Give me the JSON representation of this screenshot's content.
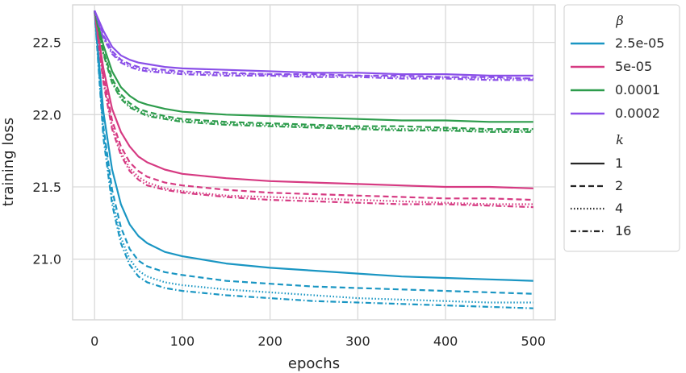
{
  "chart_data": {
    "type": "line",
    "xlabel": "epochs",
    "ylabel": "training loss",
    "xlim": [
      -25,
      525
    ],
    "ylim": [
      20.58,
      22.76
    ],
    "xticks": [
      0,
      100,
      200,
      300,
      400,
      500
    ],
    "yticks": [
      21.0,
      21.5,
      22.0,
      22.5
    ],
    "grid": true,
    "legend_position": "outside-right",
    "legend": {
      "beta_title": "β",
      "beta_entries": [
        {
          "label": "2.5e-05",
          "color": "#1a96c3"
        },
        {
          "label": "5e-05",
          "color": "#d63a82"
        },
        {
          "label": "0.0001",
          "color": "#2d9c4c"
        },
        {
          "label": "0.0002",
          "color": "#8a4fe8"
        }
      ],
      "k_title": "k",
      "k_entries": [
        {
          "label": "1",
          "dash": "solid"
        },
        {
          "label": "2",
          "dash": "dashed"
        },
        {
          "label": "4",
          "dash": "dotted"
        },
        {
          "label": "16",
          "dash": "dashdot"
        }
      ]
    },
    "x": [
      0,
      10,
      20,
      30,
      40,
      50,
      60,
      80,
      100,
      150,
      200,
      250,
      300,
      350,
      400,
      450,
      500
    ],
    "series": [
      {
        "beta": "2.5e-05",
        "k": "1",
        "values": [
          22.72,
          22.02,
          21.62,
          21.38,
          21.24,
          21.16,
          21.11,
          21.05,
          21.02,
          20.97,
          20.94,
          20.92,
          20.9,
          20.88,
          20.87,
          20.86,
          20.85
        ]
      },
      {
        "beta": "2.5e-05",
        "k": "2",
        "values": [
          22.72,
          21.92,
          21.48,
          21.22,
          21.07,
          20.99,
          20.95,
          20.91,
          20.89,
          20.85,
          20.83,
          20.81,
          20.8,
          20.79,
          20.78,
          20.77,
          20.76
        ]
      },
      {
        "beta": "2.5e-05",
        "k": "4",
        "values": [
          22.72,
          21.88,
          21.42,
          21.15,
          21.0,
          20.92,
          20.88,
          20.84,
          20.82,
          20.79,
          20.77,
          20.75,
          20.73,
          20.72,
          20.71,
          20.7,
          20.7
        ]
      },
      {
        "beta": "2.5e-05",
        "k": "16",
        "values": [
          22.72,
          21.84,
          21.38,
          21.11,
          20.96,
          20.88,
          20.84,
          20.8,
          20.78,
          20.75,
          20.73,
          20.71,
          20.7,
          20.69,
          20.68,
          20.67,
          20.66
        ]
      },
      {
        "beta": "5e-05",
        "k": "1",
        "values": [
          22.72,
          22.32,
          22.04,
          21.88,
          21.78,
          21.71,
          21.67,
          21.62,
          21.59,
          21.56,
          21.54,
          21.53,
          21.52,
          21.51,
          21.5,
          21.5,
          21.49
        ]
      },
      {
        "beta": "5e-05",
        "k": "2",
        "values": [
          22.72,
          22.27,
          21.96,
          21.78,
          21.67,
          21.61,
          21.57,
          21.53,
          21.51,
          21.48,
          21.46,
          21.45,
          21.44,
          21.43,
          21.42,
          21.42,
          21.41
        ]
      },
      {
        "beta": "5e-05",
        "k": "4",
        "values": [
          22.72,
          22.24,
          21.92,
          21.74,
          21.63,
          21.57,
          21.53,
          21.49,
          21.47,
          21.44,
          21.43,
          21.42,
          21.41,
          21.4,
          21.39,
          21.38,
          21.38
        ]
      },
      {
        "beta": "5e-05",
        "k": "16",
        "values": [
          22.72,
          22.22,
          21.9,
          21.72,
          21.61,
          21.55,
          21.51,
          21.48,
          21.46,
          21.43,
          21.41,
          21.4,
          21.39,
          21.38,
          21.38,
          21.37,
          21.36
        ]
      },
      {
        "beta": "0.0001",
        "k": "1",
        "values": [
          22.72,
          22.48,
          22.3,
          22.19,
          22.13,
          22.09,
          22.07,
          22.04,
          22.02,
          22.0,
          21.99,
          21.98,
          21.97,
          21.96,
          21.96,
          21.95,
          21.95
        ]
      },
      {
        "beta": "0.0001",
        "k": "2",
        "values": [
          22.72,
          22.44,
          22.25,
          22.14,
          22.08,
          22.04,
          22.02,
          21.99,
          21.97,
          21.95,
          21.94,
          21.93,
          21.92,
          21.92,
          21.91,
          21.9,
          21.9
        ]
      },
      {
        "beta": "0.0001",
        "k": "4",
        "values": [
          22.72,
          22.43,
          22.23,
          22.12,
          22.06,
          22.03,
          22.0,
          21.98,
          21.96,
          21.94,
          21.93,
          21.92,
          21.91,
          21.9,
          21.9,
          21.89,
          21.89
        ]
      },
      {
        "beta": "0.0001",
        "k": "16",
        "values": [
          22.72,
          22.42,
          22.22,
          22.11,
          22.05,
          22.02,
          21.99,
          21.97,
          21.95,
          21.93,
          21.92,
          21.91,
          21.9,
          21.89,
          21.89,
          21.88,
          21.88
        ]
      },
      {
        "beta": "0.0002",
        "k": "1",
        "values": [
          22.72,
          22.58,
          22.47,
          22.41,
          22.38,
          22.36,
          22.35,
          22.33,
          22.32,
          22.31,
          22.3,
          22.29,
          22.29,
          22.28,
          22.28,
          22.27,
          22.27
        ]
      },
      {
        "beta": "0.0002",
        "k": "2",
        "values": [
          22.72,
          22.55,
          22.44,
          22.38,
          22.35,
          22.33,
          22.32,
          22.31,
          22.3,
          22.29,
          22.28,
          22.28,
          22.27,
          22.27,
          22.26,
          22.26,
          22.25
        ]
      },
      {
        "beta": "0.0002",
        "k": "4",
        "values": [
          22.72,
          22.54,
          22.43,
          22.37,
          22.34,
          22.32,
          22.31,
          22.3,
          22.29,
          22.28,
          22.28,
          22.27,
          22.27,
          22.26,
          22.26,
          22.25,
          22.25
        ]
      },
      {
        "beta": "0.0002",
        "k": "16",
        "values": [
          22.72,
          22.53,
          22.42,
          22.36,
          22.33,
          22.31,
          22.3,
          22.29,
          22.28,
          22.27,
          22.27,
          22.26,
          22.26,
          22.25,
          22.25,
          22.24,
          22.24
        ]
      }
    ]
  }
}
